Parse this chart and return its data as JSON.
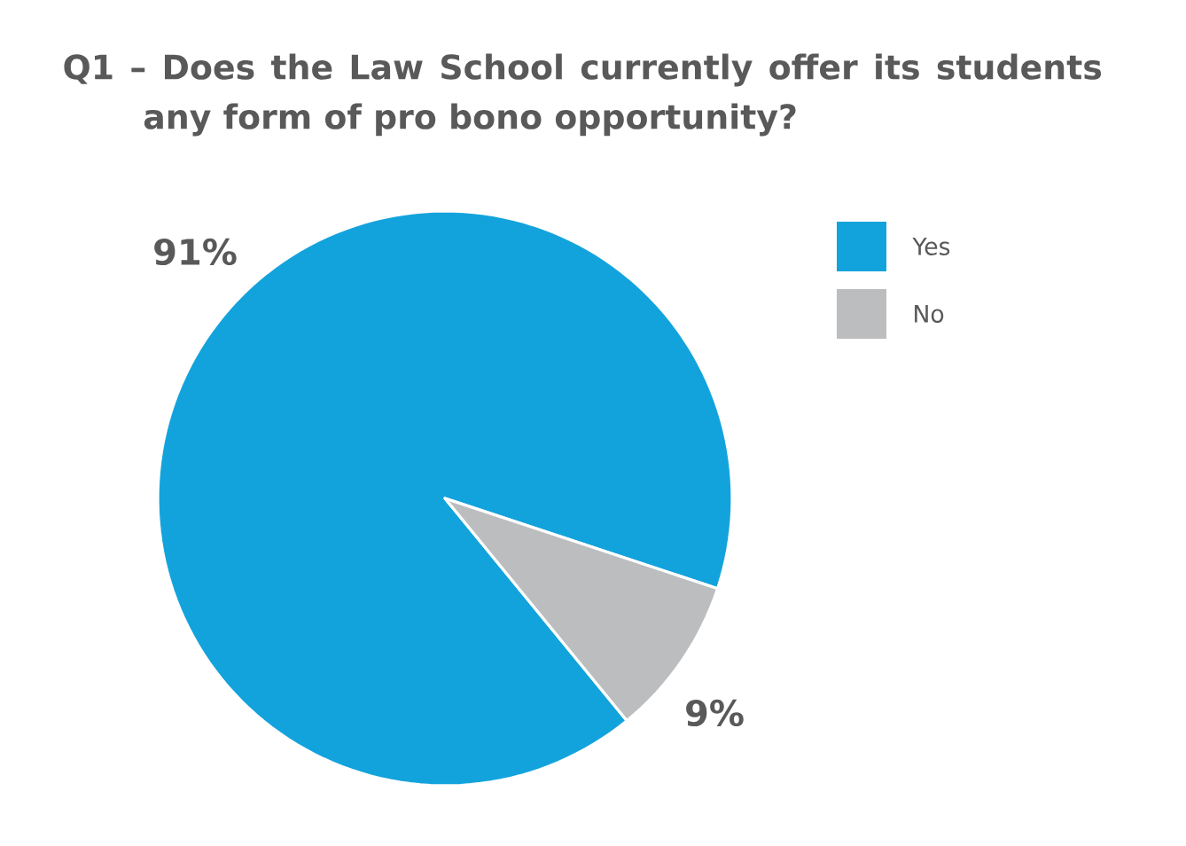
{
  "chart_data": {
    "type": "pie",
    "title": "Q1 – Does the Law School currently offer its students any form of pro bono opportunity?",
    "categories": [
      "Yes",
      "No"
    ],
    "values": [
      91,
      9
    ],
    "colors": [
      "#13a3dc",
      "#bcbdbf"
    ],
    "value_labels": [
      "91%",
      "9%"
    ],
    "legend": "top right"
  }
}
